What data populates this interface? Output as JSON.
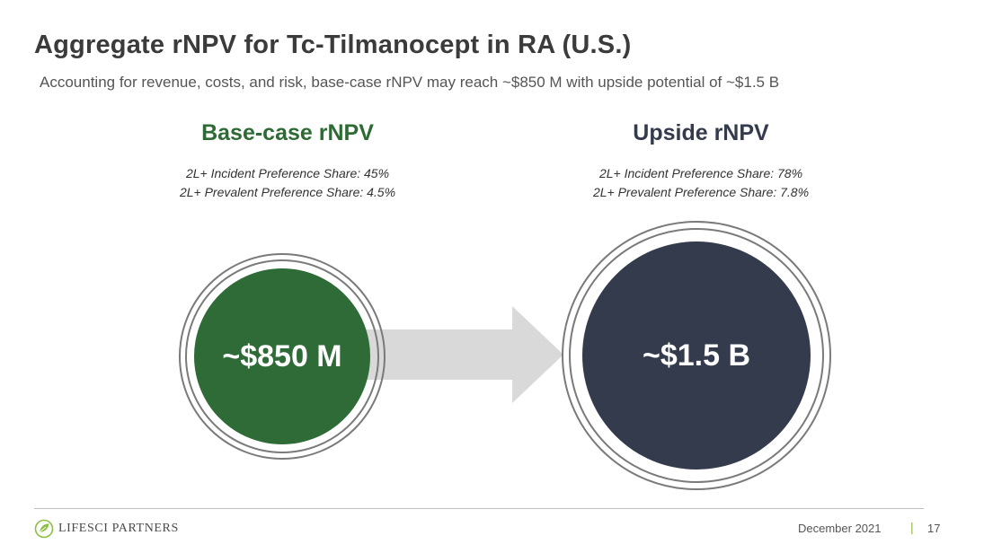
{
  "slide": {
    "title": "Aggregate rNPV for Tc-Tilmanocept  in RA (U.S.)",
    "subtitle": "Accounting for revenue, costs, and risk, base-case rNPV may reach ~$850 M with upside potential of ~$1.5 B"
  },
  "base_case": {
    "heading": "Base-case rNPV",
    "assumption_1": "2L+ Incident Preference Share: 45%",
    "assumption_2": "2L+ Prevalent Preference Share: 4.5%",
    "value": "~$850 M",
    "color": "#2e6b37"
  },
  "upside": {
    "heading": "Upside rNPV",
    "assumption_1": "2L+ Incident Preference Share: 78%",
    "assumption_2": "2L+ Prevalent Preference Share: 7.8%",
    "value": "~$1.5 B",
    "color": "#333b4d"
  },
  "footer": {
    "logo_text": "LIFESCI PARTNERS",
    "date": "December 2021",
    "separator": "|",
    "page_number": "17"
  }
}
